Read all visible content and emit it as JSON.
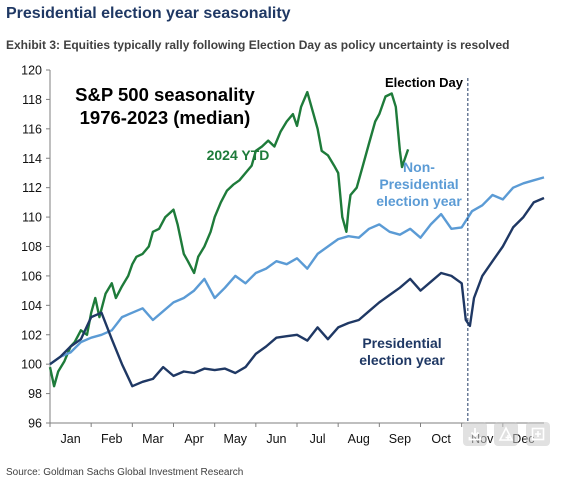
{
  "header": {
    "title": "Presidential election year seasonality",
    "subtitle": "Exhibit 3: Equities typically rally following Election Day as policy uncertainty is resolved"
  },
  "footer": {
    "source": "Source: Goldman Sachs Global Investment Research"
  },
  "toolbar": {
    "icons": [
      "download-icon",
      "share-icon",
      "expand-icon"
    ]
  },
  "chart_data": {
    "type": "line",
    "title": "S&P 500 seasonality",
    "title_line2": "1976-2023 (median)",
    "ylim": [
      96,
      120
    ],
    "yticks": [
      96,
      98,
      100,
      102,
      104,
      106,
      108,
      110,
      112,
      114,
      116,
      118,
      120
    ],
    "xlim": [
      0,
      12
    ],
    "month_labels": [
      "Jan",
      "Feb",
      "Mar",
      "Apr",
      "May",
      "Jun",
      "Jul",
      "Aug",
      "Sep",
      "Oct",
      "Nov",
      "Dec"
    ],
    "grid": false,
    "annotations": {
      "election_day": "Election Day",
      "election_day_x": 10.15
    },
    "series": [
      {
        "name": "2024 YTD",
        "label_lines": [
          "2024 YTD"
        ],
        "color": "#1e7b3a",
        "x": [
          0,
          0.1,
          0.2,
          0.35,
          0.5,
          0.6,
          0.75,
          0.9,
          1.0,
          1.1,
          1.2,
          1.35,
          1.5,
          1.6,
          1.75,
          1.9,
          2.0,
          2.1,
          2.25,
          2.4,
          2.5,
          2.65,
          2.8,
          3.0,
          3.1,
          3.25,
          3.35,
          3.5,
          3.6,
          3.75,
          3.9,
          4.0,
          4.15,
          4.3,
          4.45,
          4.6,
          4.75,
          4.9,
          5.0,
          5.15,
          5.3,
          5.45,
          5.6,
          5.75,
          5.9,
          6.0,
          6.1,
          6.25,
          6.4,
          6.5,
          6.6,
          6.75,
          6.9,
          7.0,
          7.1,
          7.2,
          7.25,
          7.3,
          7.45,
          7.6,
          7.75,
          7.9,
          8.0,
          8.15,
          8.3,
          8.4,
          8.5,
          8.55,
          8.6,
          8.7
        ],
        "y": [
          99.8,
          98.5,
          99.5,
          100.2,
          101.2,
          101.5,
          102.3,
          102.0,
          103.5,
          104.5,
          103.2,
          104.8,
          105.5,
          104.5,
          105.3,
          106.0,
          106.8,
          107.3,
          107.5,
          108.0,
          109.0,
          109.2,
          110.0,
          110.5,
          109.5,
          107.5,
          107.0,
          106.2,
          107.3,
          108.0,
          109.0,
          110.0,
          111.0,
          111.8,
          112.2,
          112.5,
          113.0,
          113.5,
          114.5,
          114.8,
          115.2,
          114.8,
          115.8,
          116.5,
          117.0,
          116.2,
          117.5,
          118.5,
          117.0,
          116.0,
          114.5,
          114.2,
          113.5,
          113.0,
          110.0,
          109.0,
          110.5,
          111.5,
          112.0,
          113.5,
          115.0,
          116.5,
          117.0,
          118.2,
          118.4,
          117.5,
          114.5,
          113.4,
          113.8,
          114.6
        ]
      },
      {
        "name": "Non-Presidential election year",
        "label_lines": [
          "Non-",
          "Presidential",
          "election year"
        ],
        "color": "#5b9bd5",
        "x": [
          0,
          0.25,
          0.5,
          0.75,
          1.0,
          1.25,
          1.5,
          1.75,
          2.0,
          2.25,
          2.5,
          2.75,
          3.0,
          3.25,
          3.5,
          3.75,
          4.0,
          4.25,
          4.5,
          4.75,
          5.0,
          5.25,
          5.5,
          5.75,
          6.0,
          6.25,
          6.5,
          6.75,
          7.0,
          7.25,
          7.5,
          7.75,
          8.0,
          8.25,
          8.5,
          8.75,
          9.0,
          9.25,
          9.5,
          9.75,
          10.0,
          10.25,
          10.5,
          10.75,
          11.0,
          11.25,
          11.5,
          11.75,
          12.0
        ],
        "y": [
          100.0,
          100.5,
          100.8,
          101.5,
          101.8,
          102.0,
          102.3,
          103.2,
          103.5,
          103.8,
          103.0,
          103.6,
          104.2,
          104.5,
          105.0,
          105.8,
          104.5,
          105.2,
          106.0,
          105.5,
          106.2,
          106.5,
          107.0,
          106.8,
          107.2,
          106.5,
          107.5,
          108.0,
          108.5,
          108.7,
          108.6,
          109.2,
          109.5,
          109.0,
          108.8,
          109.2,
          108.6,
          109.5,
          110.2,
          109.2,
          109.3,
          110.4,
          110.8,
          111.5,
          111.2,
          112.0,
          112.3,
          112.5,
          112.7
        ]
      },
      {
        "name": "Presidential election year",
        "label_lines": [
          "Presidential",
          "election year"
        ],
        "color": "#1f3864",
        "x": [
          0,
          0.25,
          0.5,
          0.75,
          1.0,
          1.25,
          1.5,
          1.75,
          2.0,
          2.25,
          2.5,
          2.75,
          3.0,
          3.25,
          3.5,
          3.75,
          4.0,
          4.25,
          4.5,
          4.75,
          5.0,
          5.25,
          5.5,
          5.75,
          6.0,
          6.25,
          6.5,
          6.75,
          7.0,
          7.25,
          7.5,
          7.75,
          8.0,
          8.25,
          8.5,
          8.75,
          9.0,
          9.25,
          9.5,
          9.75,
          10.0,
          10.1,
          10.2,
          10.3,
          10.5,
          10.75,
          11.0,
          11.25,
          11.5,
          11.75,
          12.0
        ],
        "y": [
          100.0,
          100.5,
          101.2,
          101.7,
          103.2,
          103.5,
          101.7,
          100.0,
          98.5,
          98.8,
          99.0,
          99.8,
          99.2,
          99.5,
          99.4,
          99.7,
          99.6,
          99.7,
          99.4,
          99.8,
          100.7,
          101.2,
          101.8,
          101.9,
          102.0,
          101.6,
          102.5,
          101.7,
          102.5,
          102.8,
          103.0,
          103.6,
          104.2,
          104.7,
          105.2,
          105.8,
          105.0,
          105.6,
          106.2,
          106.0,
          105.5,
          103.0,
          102.6,
          104.5,
          106.0,
          107.0,
          108.0,
          109.3,
          110.0,
          111.0,
          111.3
        ]
      }
    ]
  }
}
